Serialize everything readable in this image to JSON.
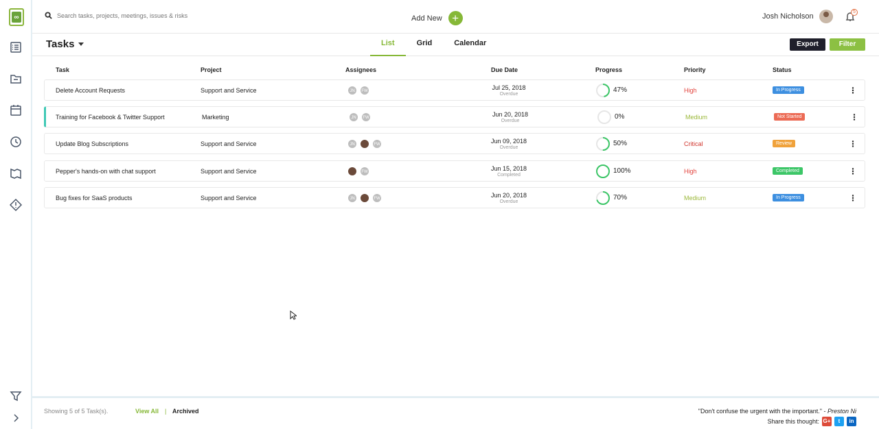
{
  "search": {
    "placeholder": "Search tasks, projects, meetings, issues & risks"
  },
  "header": {
    "add_new_label": "Add New",
    "user_name": "Josh Nicholson",
    "notification_count": "5"
  },
  "titlebar": {
    "title": "Tasks",
    "tabs": [
      {
        "label": "List",
        "active": true
      },
      {
        "label": "Grid",
        "active": false
      },
      {
        "label": "Calendar",
        "active": false
      }
    ],
    "export_label": "Export",
    "filter_label": "Filter"
  },
  "table": {
    "columns": [
      "Task",
      "Project",
      "Assignees",
      "Due Date",
      "Progress",
      "Priority",
      "Status"
    ],
    "rows": [
      {
        "task": "Delete Account Requests",
        "project": "Support and Service",
        "assignees": [
          "JN",
          "FW"
        ],
        "due_date": "Jul 25, 2018",
        "due_sub": "Overdue",
        "progress": 47,
        "progress_label": "47%",
        "priority": "High",
        "status": "In Progress"
      },
      {
        "task": "Training for Facebook & Twitter Support",
        "project": "Marketing",
        "assignees": [
          "JN",
          "FW"
        ],
        "due_date": "Jun 20, 2018",
        "due_sub": "Overdue",
        "progress": 0,
        "progress_label": "0%",
        "priority": "Medium",
        "status": "Not Started"
      },
      {
        "task": "Update Blog Subscriptions",
        "project": "Support and Service",
        "assignees": [
          "JN",
          "photo",
          "FW"
        ],
        "due_date": "Jun 09, 2018",
        "due_sub": "Overdue",
        "progress": 50,
        "progress_label": "50%",
        "priority": "Critical",
        "status": "Review"
      },
      {
        "task": "Pepper's hands-on with chat support",
        "project": "Support and Service",
        "assignees": [
          "photo",
          "FW"
        ],
        "due_date": "Jun 15, 2018",
        "due_sub": "Completed",
        "progress": 100,
        "progress_label": "100%",
        "priority": "High",
        "status": "Completed"
      },
      {
        "task": "Bug fixes for SaaS products",
        "project": "Support and Service",
        "assignees": [
          "JN",
          "photo",
          "FW"
        ],
        "due_date": "Jun 20, 2018",
        "due_sub": "Overdue",
        "progress": 70,
        "progress_label": "70%",
        "priority": "Medium",
        "status": "In Progress"
      }
    ]
  },
  "colors": {
    "accent": "#86b837",
    "priority": {
      "High": "#e2403a",
      "Medium": "#9bb83a",
      "Critical": "#d0342c"
    },
    "status": {
      "In Progress": "#3d8fe0",
      "Not Started": "#ec6b55",
      "Review": "#f0a23b",
      "Completed": "#3cc667"
    }
  },
  "footer": {
    "showing": "Showing 5 of 5 Task(s).",
    "view_all": "View All",
    "separator": "|",
    "archived": "Archived",
    "quote": "\"Don't confuse the urgent with the important.\" - ",
    "quote_author": "Preston Ni",
    "share_label": "Share this thought:",
    "social": [
      "G+",
      "t",
      "in"
    ]
  }
}
